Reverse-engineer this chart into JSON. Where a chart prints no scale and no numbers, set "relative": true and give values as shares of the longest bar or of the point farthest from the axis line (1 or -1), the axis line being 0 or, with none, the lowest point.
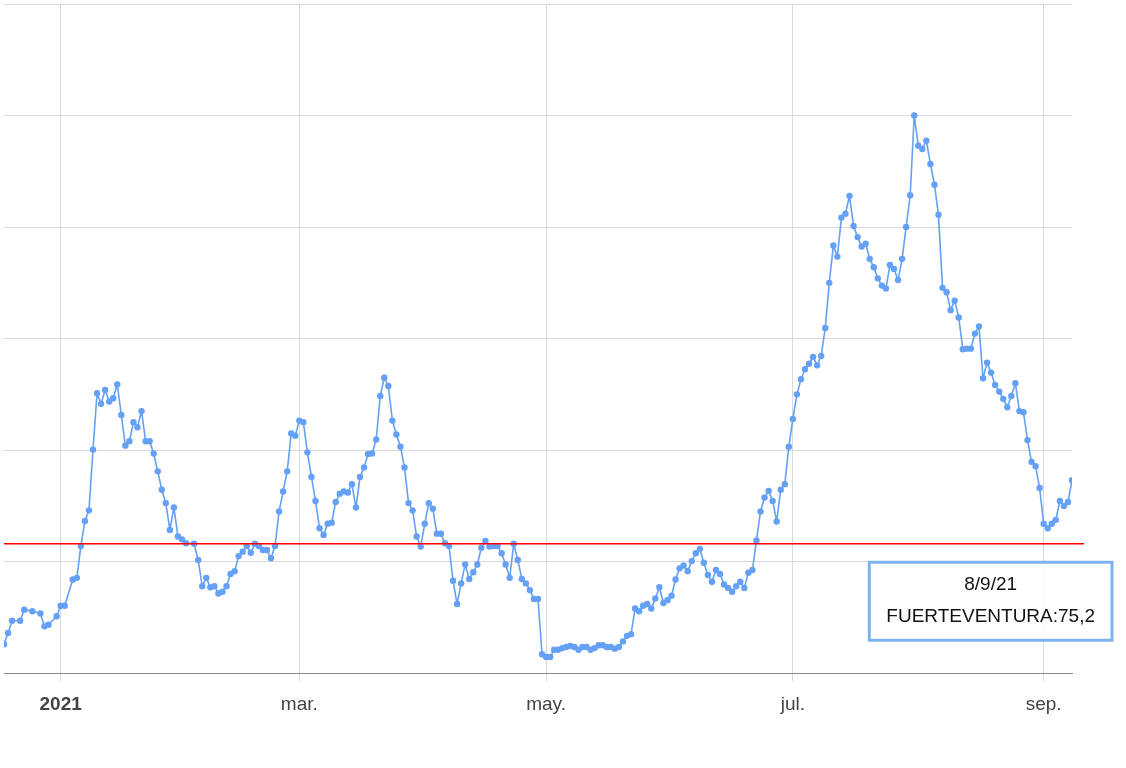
{
  "chart_data": {
    "type": "line",
    "relative": true,
    "grid": true,
    "legend": false,
    "marker": "circle",
    "line_style": "solid",
    "xlim": [
      "2020-12-18",
      "2021-09-08"
    ],
    "xticks": [
      {
        "value": "2021-01-01",
        "label": "2021"
      },
      {
        "value": "2021-03-01",
        "label": "mar."
      },
      {
        "value": "2021-05-01",
        "label": "may."
      },
      {
        "value": "2021-07-01",
        "label": "jul."
      },
      {
        "value": "2021-09-01",
        "label": "sep."
      }
    ],
    "x": [
      "2020-12-18",
      "2020-12-19",
      "2020-12-20",
      "2020-12-22",
      "2020-12-23",
      "2020-12-25",
      "2020-12-27",
      "2020-12-28",
      "2020-12-29",
      "2020-12-31",
      "2021-01-01",
      "2021-01-02",
      "2021-01-04",
      "2021-01-05",
      "2021-01-06",
      "2021-01-07",
      "2021-01-08",
      "2021-01-09",
      "2021-01-10",
      "2021-01-11",
      "2021-01-12",
      "2021-01-13",
      "2021-01-14",
      "2021-01-15",
      "2021-01-16",
      "2021-01-17",
      "2021-01-18",
      "2021-01-19",
      "2021-01-20",
      "2021-01-21",
      "2021-01-22",
      "2021-01-23",
      "2021-01-24",
      "2021-01-25",
      "2021-01-26",
      "2021-01-27",
      "2021-01-28",
      "2021-01-29",
      "2021-01-30",
      "2021-01-31",
      "2021-02-01",
      "2021-02-03",
      "2021-02-04",
      "2021-02-05",
      "2021-02-06",
      "2021-02-07",
      "2021-02-08",
      "2021-02-09",
      "2021-02-10",
      "2021-02-11",
      "2021-02-12",
      "2021-02-13",
      "2021-02-14",
      "2021-02-15",
      "2021-02-16",
      "2021-02-17",
      "2021-02-18",
      "2021-02-19",
      "2021-02-20",
      "2021-02-21",
      "2021-02-22",
      "2021-02-23",
      "2021-02-24",
      "2021-02-25",
      "2021-02-26",
      "2021-02-27",
      "2021-02-28",
      "2021-03-01",
      "2021-03-02",
      "2021-03-03",
      "2021-03-04",
      "2021-03-05",
      "2021-03-06",
      "2021-03-07",
      "2021-03-08",
      "2021-03-09",
      "2021-03-10",
      "2021-03-11",
      "2021-03-12",
      "2021-03-13",
      "2021-03-14",
      "2021-03-15",
      "2021-03-16",
      "2021-03-17",
      "2021-03-18",
      "2021-03-19",
      "2021-03-20",
      "2021-03-21",
      "2021-03-22",
      "2021-03-23",
      "2021-03-24",
      "2021-03-25",
      "2021-03-26",
      "2021-03-27",
      "2021-03-28",
      "2021-03-29",
      "2021-03-30",
      "2021-03-31",
      "2021-04-01",
      "2021-04-02",
      "2021-04-03",
      "2021-04-04",
      "2021-04-05",
      "2021-04-06",
      "2021-04-07",
      "2021-04-08",
      "2021-04-09",
      "2021-04-10",
      "2021-04-11",
      "2021-04-12",
      "2021-04-13",
      "2021-04-14",
      "2021-04-15",
      "2021-04-16",
      "2021-04-17",
      "2021-04-18",
      "2021-04-19",
      "2021-04-20",
      "2021-04-21",
      "2021-04-22",
      "2021-04-23",
      "2021-04-24",
      "2021-04-25",
      "2021-04-26",
      "2021-04-27",
      "2021-04-28",
      "2021-04-29",
      "2021-04-30",
      "2021-05-01",
      "2021-05-02",
      "2021-05-03",
      "2021-05-04",
      "2021-05-05",
      "2021-05-06",
      "2021-05-07",
      "2021-05-08",
      "2021-05-09",
      "2021-05-10",
      "2021-05-11",
      "2021-05-12",
      "2021-05-13",
      "2021-05-14",
      "2021-05-15",
      "2021-05-16",
      "2021-05-17",
      "2021-05-18",
      "2021-05-19",
      "2021-05-20",
      "2021-05-21",
      "2021-05-22",
      "2021-05-23",
      "2021-05-24",
      "2021-05-25",
      "2021-05-26",
      "2021-05-27",
      "2021-05-28",
      "2021-05-29",
      "2021-05-30",
      "2021-05-31",
      "2021-06-01",
      "2021-06-02",
      "2021-06-03",
      "2021-06-04",
      "2021-06-05",
      "2021-06-06",
      "2021-06-07",
      "2021-06-08",
      "2021-06-09",
      "2021-06-10",
      "2021-06-11",
      "2021-06-12",
      "2021-06-13",
      "2021-06-14",
      "2021-06-15",
      "2021-06-16",
      "2021-06-17",
      "2021-06-18",
      "2021-06-19",
      "2021-06-20",
      "2021-06-21",
      "2021-06-22",
      "2021-06-23",
      "2021-06-24",
      "2021-06-25",
      "2021-06-26",
      "2021-06-27",
      "2021-06-28",
      "2021-06-29",
      "2021-06-30",
      "2021-07-01",
      "2021-07-02",
      "2021-07-03",
      "2021-07-04",
      "2021-07-05",
      "2021-07-06",
      "2021-07-07",
      "2021-07-08",
      "2021-07-09",
      "2021-07-10",
      "2021-07-11",
      "2021-07-12",
      "2021-07-13",
      "2021-07-14",
      "2021-07-15",
      "2021-07-16",
      "2021-07-17",
      "2021-07-18",
      "2021-07-19",
      "2021-07-20",
      "2021-07-21",
      "2021-07-22",
      "2021-07-23",
      "2021-07-24",
      "2021-07-25",
      "2021-07-26",
      "2021-07-27",
      "2021-07-28",
      "2021-07-29",
      "2021-07-30",
      "2021-07-31",
      "2021-08-01",
      "2021-08-02",
      "2021-08-03",
      "2021-08-04",
      "2021-08-05",
      "2021-08-06",
      "2021-08-07",
      "2021-08-08",
      "2021-08-09",
      "2021-08-10",
      "2021-08-11",
      "2021-08-12",
      "2021-08-13",
      "2021-08-14",
      "2021-08-15",
      "2021-08-16",
      "2021-08-17",
      "2021-08-18",
      "2021-08-19",
      "2021-08-20",
      "2021-08-21",
      "2021-08-22",
      "2021-08-23",
      "2021-08-24",
      "2021-08-25",
      "2021-08-26",
      "2021-08-27",
      "2021-08-28",
      "2021-08-29",
      "2021-08-30",
      "2021-08-31",
      "2021-09-01",
      "2021-09-02",
      "2021-09-03",
      "2021-09-04",
      "2021-09-05",
      "2021-09-06",
      "2021-09-07",
      "2021-09-08"
    ],
    "series": [
      {
        "color": "#64a0f5",
        "values": [
          0.052,
          0.072,
          0.094,
          0.094,
          0.114,
          0.111,
          0.107,
          0.084,
          0.087,
          0.102,
          0.121,
          0.121,
          0.168,
          0.171,
          0.228,
          0.273,
          0.292,
          0.401,
          0.502,
          0.483,
          0.508,
          0.487,
          0.493,
          0.518,
          0.463,
          0.408,
          0.416,
          0.45,
          0.441,
          0.47,
          0.416,
          0.416,
          0.394,
          0.362,
          0.329,
          0.305,
          0.257,
          0.297,
          0.245,
          0.24,
          0.233,
          0.232,
          0.203,
          0.156,
          0.171,
          0.154,
          0.156,
          0.143,
          0.146,
          0.156,
          0.178,
          0.183,
          0.21,
          0.218,
          0.228,
          0.216,
          0.232,
          0.228,
          0.221,
          0.221,
          0.206,
          0.228,
          0.29,
          0.326,
          0.362,
          0.43,
          0.426,
          0.453,
          0.45,
          0.396,
          0.352,
          0.309,
          0.26,
          0.248,
          0.268,
          0.27,
          0.307,
          0.322,
          0.326,
          0.324,
          0.339,
          0.297,
          0.352,
          0.369,
          0.393,
          0.394,
          0.419,
          0.497,
          0.53,
          0.515,
          0.453,
          0.428,
          0.406,
          0.369,
          0.305,
          0.292,
          0.245,
          0.227,
          0.268,
          0.305,
          0.295,
          0.25,
          0.25,
          0.233,
          0.228,
          0.166,
          0.124,
          0.161,
          0.195,
          0.169,
          0.181,
          0.195,
          0.225,
          0.237,
          0.227,
          0.228,
          0.228,
          0.215,
          0.195,
          0.171,
          0.232,
          0.203,
          0.169,
          0.161,
          0.149,
          0.133,
          0.133,
          0.034,
          0.029,
          0.029,
          0.042,
          0.042,
          0.045,
          0.047,
          0.049,
          0.047,
          0.042,
          0.047,
          0.047,
          0.042,
          0.045,
          0.05,
          0.05,
          0.047,
          0.047,
          0.044,
          0.047,
          0.057,
          0.067,
          0.07,
          0.116,
          0.111,
          0.121,
          0.124,
          0.116,
          0.134,
          0.154,
          0.126,
          0.131,
          0.139,
          0.168,
          0.188,
          0.193,
          0.183,
          0.201,
          0.215,
          0.223,
          0.198,
          0.176,
          0.164,
          0.185,
          0.178,
          0.159,
          0.153,
          0.146,
          0.156,
          0.164,
          0.153,
          0.18,
          0.185,
          0.238,
          0.29,
          0.315,
          0.327,
          0.309,
          0.272,
          0.329,
          0.339,
          0.406,
          0.456,
          0.5,
          0.527,
          0.545,
          0.555,
          0.567,
          0.552,
          0.569,
          0.619,
          0.7,
          0.767,
          0.747,
          0.817,
          0.824,
          0.856,
          0.802,
          0.782,
          0.765,
          0.77,
          0.743,
          0.728,
          0.708,
          0.695,
          0.69,
          0.732,
          0.725,
          0.705,
          0.743,
          0.8,
          0.857,
          1.0,
          0.946,
          0.94,
          0.955,
          0.913,
          0.876,
          0.822,
          0.691,
          0.683,
          0.651,
          0.668,
          0.638,
          0.581,
          0.582,
          0.582,
          0.609,
          0.622,
          0.529,
          0.557,
          0.539,
          0.517,
          0.505,
          0.492,
          0.477,
          0.497,
          0.52,
          0.47,
          0.468,
          0.418,
          0.379,
          0.371,
          0.332,
          0.268,
          0.26,
          0.268,
          0.275,
          0.309,
          0.3,
          0.307,
          0.346
        ]
      }
    ],
    "ref_lines": [
      {
        "axis": "y",
        "value": 0.232,
        "color": "#ff0000"
      }
    ],
    "annotations": [
      "8/9/21",
      "FUERTEVENTURA:75,2"
    ]
  }
}
